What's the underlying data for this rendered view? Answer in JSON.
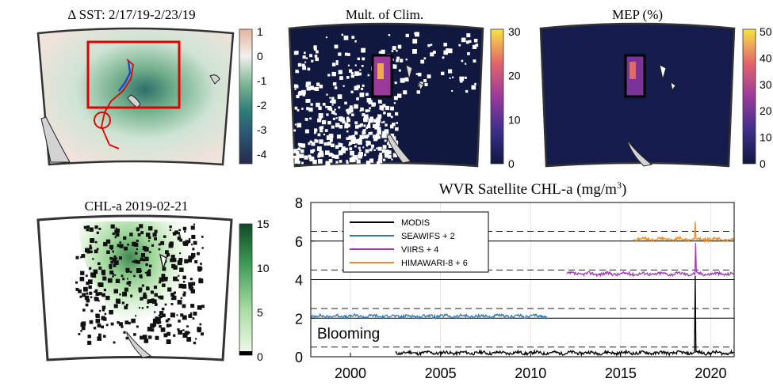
{
  "panels": {
    "sst": {
      "title": "Δ SST: 2/17/19-2/23/19",
      "colorbar_ticks": [
        "1",
        "0",
        "-1",
        "-2",
        "-3",
        "-4"
      ]
    },
    "mult": {
      "title": "Mult. of Clim.",
      "colorbar_ticks": [
        "30",
        "20",
        "10",
        "0"
      ]
    },
    "mep": {
      "title": "MEP (%)",
      "colorbar_ticks": [
        "50",
        "40",
        "30",
        "20",
        "10",
        "0"
      ]
    },
    "chl": {
      "title": "CHL-a 2019-02-21",
      "colorbar_ticks": [
        "15",
        "10",
        "5",
        "0"
      ]
    }
  },
  "colors": {
    "modis": "#000000",
    "seawifs": "#2f78b4",
    "viirs": "#9b3fb0",
    "himawari": "#f08a18",
    "box": "#e00000",
    "track_blue": "#1f3fd8"
  },
  "chart_data": {
    "type": "line",
    "title": "WVR Satellite CHL-a (mg/m3)",
    "xlim": [
      1997.8,
      2021.3
    ],
    "ylim": [
      0,
      8
    ],
    "x_ticks": [
      2000,
      2005,
      2010,
      2015,
      2020
    ],
    "y_ticks": [
      0,
      2,
      4,
      6,
      8
    ],
    "grid": true,
    "legend_location": "top-left",
    "annotation": "Blooming",
    "series": [
      {
        "name": "MODIS",
        "offset": 0,
        "baseline": 0.2,
        "x_start": 2002.5,
        "x_end": 2021.3,
        "spike": {
          "x": 2019.15,
          "y": 4.2
        }
      },
      {
        "name": "SEAWIFS + 2",
        "offset": 2,
        "baseline": 2.1,
        "x_start": 1997.8,
        "x_end": 2010.9
      },
      {
        "name": "VIIRS + 4",
        "offset": 4,
        "baseline": 4.3,
        "x_start": 2012.0,
        "x_end": 2021.3,
        "spike": {
          "x": 2019.15,
          "y": 5.9
        }
      },
      {
        "name": "HIMAWARI-8 + 6",
        "offset": 6,
        "baseline": 6.1,
        "x_start": 2015.7,
        "x_end": 2021.3,
        "spike": {
          "x": 2019.15,
          "y": 7.0
        }
      }
    ],
    "reference_lines": [
      {
        "y": 0.5,
        "style": "dashed"
      },
      {
        "y": 2.0,
        "style": "solid"
      },
      {
        "y": 2.5,
        "style": "dashed"
      },
      {
        "y": 4.0,
        "style": "solid"
      },
      {
        "y": 4.5,
        "style": "dashed"
      },
      {
        "y": 6.0,
        "style": "solid"
      },
      {
        "y": 6.5,
        "style": "dashed"
      }
    ]
  }
}
